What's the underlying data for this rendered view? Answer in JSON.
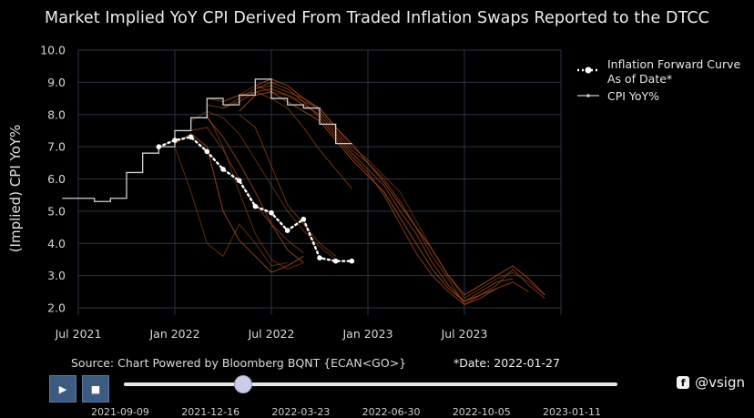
{
  "title": "Market Implied YoY CPI Derived From Traded Inflation Swaps Reported to the DTCC",
  "chart_data": {
    "type": "line",
    "title": "Market Implied YoY CPI Derived From Traded Inflation Swaps Reported to the DTCC",
    "ylabel": "(Implied) CPI YoY%",
    "xlabel": "",
    "ylim": [
      2.0,
      10.0
    ],
    "y_ticks": [
      "2.0",
      "3.0",
      "4.0",
      "5.0",
      "6.0",
      "7.0",
      "8.0",
      "9.0",
      "10.0"
    ],
    "x_ticks": [
      {
        "label": "Jul 2021",
        "x": "2021-07"
      },
      {
        "label": "Jan 2022",
        "x": "2022-01"
      },
      {
        "label": "Jul 2022",
        "x": "2022-07"
      },
      {
        "label": "Jan 2023",
        "x": "2023-01"
      },
      {
        "label": "Jul 2023",
        "x": "2023-07"
      }
    ],
    "grid": true,
    "legend_position": "top-right",
    "series": [
      {
        "name": "Inflation Forward Curve As of Date*",
        "style": "dotted",
        "color": "#ffffff",
        "x": [
          "2021-12",
          "2022-01",
          "2022-02",
          "2022-03",
          "2022-04",
          "2022-05",
          "2022-06",
          "2022-07",
          "2022-08",
          "2022-09",
          "2022-10",
          "2022-11",
          "2022-12"
        ],
        "y": [
          7.0,
          7.2,
          7.3,
          6.85,
          6.3,
          5.95,
          5.15,
          4.95,
          4.4,
          4.75,
          3.55,
          3.45,
          3.45
        ]
      },
      {
        "name": "CPI YoY%",
        "style": "step",
        "color": "#cfcfcf",
        "x": [
          "2021-06",
          "2021-07",
          "2021-08",
          "2021-09",
          "2021-10",
          "2021-11",
          "2021-12",
          "2022-01",
          "2022-02",
          "2022-03",
          "2022-04",
          "2022-05",
          "2022-06",
          "2022-07",
          "2022-08",
          "2022-09",
          "2022-10",
          "2022-11"
        ],
        "y": [
          5.4,
          5.4,
          5.3,
          5.4,
          6.2,
          6.8,
          7.0,
          7.5,
          7.9,
          8.5,
          8.3,
          8.6,
          9.1,
          8.5,
          8.3,
          8.2,
          7.7,
          7.1
        ]
      }
    ],
    "history_curves_color": "#a0471c",
    "history_curves": [
      {
        "x": [
          "2022-03",
          "2022-04",
          "2022-05",
          "2022-06",
          "2022-07",
          "2022-08",
          "2022-09",
          "2022-10",
          "2022-11",
          "2022-12",
          "2023-01",
          "2023-02",
          "2023-03",
          "2023-04",
          "2023-05",
          "2023-06",
          "2023-07",
          "2023-08",
          "2023-09",
          "2023-10",
          "2023-11",
          "2023-12"
        ],
        "y": [
          8.5,
          8.4,
          8.6,
          8.9,
          8.7,
          8.6,
          8.4,
          8.2,
          7.6,
          7.0,
          6.6,
          6.1,
          5.6,
          4.7,
          3.8,
          3.0,
          2.3,
          2.6,
          2.9,
          3.1,
          2.8,
          2.4
        ]
      },
      {
        "x": [
          "2022-03",
          "2022-04",
          "2022-05",
          "2022-06",
          "2022-07",
          "2022-08",
          "2022-09",
          "2022-10",
          "2022-11",
          "2022-12",
          "2023-01",
          "2023-02",
          "2023-03",
          "2023-04",
          "2023-05",
          "2023-06",
          "2023-07",
          "2023-08",
          "2023-09",
          "2023-10",
          "2023-11",
          "2023-12"
        ],
        "y": [
          8.3,
          8.2,
          8.5,
          8.8,
          8.9,
          8.7,
          8.5,
          8.1,
          7.5,
          6.9,
          6.5,
          6.0,
          5.3,
          4.5,
          3.6,
          2.9,
          2.1,
          2.4,
          2.7,
          3.2,
          2.7,
          2.3
        ]
      },
      {
        "x": [
          "2022-04",
          "2022-05",
          "2022-06",
          "2022-07",
          "2022-08",
          "2022-09",
          "2022-10",
          "2022-11",
          "2022-12",
          "2023-01",
          "2023-02",
          "2023-03",
          "2023-04",
          "2023-05",
          "2023-06",
          "2023-07",
          "2023-08",
          "2023-09",
          "2023-10"
        ],
        "y": [
          8.2,
          8.4,
          8.7,
          8.8,
          8.6,
          8.3,
          8.0,
          7.4,
          6.8,
          6.3,
          5.8,
          5.0,
          4.3,
          3.4,
          2.7,
          2.2,
          2.5,
          2.8,
          2.9
        ]
      },
      {
        "x": [
          "2022-05",
          "2022-06",
          "2022-07",
          "2022-08",
          "2022-09",
          "2022-10",
          "2022-11",
          "2022-12",
          "2023-01",
          "2023-02",
          "2023-03",
          "2023-04",
          "2023-05",
          "2023-06",
          "2023-07",
          "2023-08",
          "2023-09"
        ],
        "y": [
          8.1,
          8.6,
          8.7,
          8.4,
          8.1,
          7.8,
          7.2,
          6.6,
          6.1,
          5.6,
          4.8,
          4.0,
          3.2,
          2.6,
          2.2,
          2.4,
          2.6
        ]
      },
      {
        "x": [
          "2022-02",
          "2022-03",
          "2022-04",
          "2022-05",
          "2022-06",
          "2022-07",
          "2022-08",
          "2022-09",
          "2022-10",
          "2022-11"
        ],
        "y": [
          7.8,
          8.1,
          7.9,
          7.4,
          6.6,
          5.8,
          5.0,
          4.4,
          3.9,
          3.5
        ]
      },
      {
        "x": [
          "2022-02",
          "2022-03",
          "2022-04",
          "2022-05",
          "2022-06",
          "2022-07",
          "2022-08",
          "2022-09"
        ],
        "y": [
          7.5,
          7.6,
          6.9,
          6.0,
          5.2,
          4.6,
          4.1,
          3.7
        ]
      },
      {
        "x": [
          "2022-03",
          "2022-04",
          "2022-05",
          "2022-06",
          "2022-07",
          "2022-08",
          "2022-09"
        ],
        "y": [
          7.9,
          7.3,
          6.5,
          5.6,
          4.6,
          3.8,
          3.4
        ]
      },
      {
        "x": [
          "2022-01",
          "2022-02",
          "2022-03",
          "2022-04",
          "2022-05",
          "2022-06",
          "2022-07",
          "2022-08",
          "2022-09"
        ],
        "y": [
          7.1,
          7.4,
          7.0,
          5.0,
          4.1,
          3.6,
          3.1,
          3.3,
          3.6
        ]
      },
      {
        "x": [
          "2022-01",
          "2022-02",
          "2022-03",
          "2022-04",
          "2022-05",
          "2022-06",
          "2022-07",
          "2022-08"
        ],
        "y": [
          7.0,
          5.6,
          4.0,
          3.6,
          4.6,
          4.0,
          3.3,
          3.4
        ]
      },
      {
        "x": [
          "2022-04",
          "2022-05",
          "2022-06",
          "2022-07",
          "2022-08",
          "2022-09",
          "2022-10",
          "2022-11",
          "2022-12"
        ],
        "y": [
          8.4,
          8.6,
          8.7,
          8.5,
          8.2,
          7.6,
          6.9,
          6.3,
          5.7
        ]
      },
      {
        "x": [
          "2022-06",
          "2022-07",
          "2022-08",
          "2022-09",
          "2022-10",
          "2022-11",
          "2022-12",
          "2023-01",
          "2023-02",
          "2023-03",
          "2023-04",
          "2023-05",
          "2023-06",
          "2023-07",
          "2023-08",
          "2023-09",
          "2023-10",
          "2023-11"
        ],
        "y": [
          8.8,
          9.0,
          8.8,
          8.4,
          7.9,
          7.3,
          6.7,
          6.2,
          5.5,
          4.6,
          3.7,
          3.0,
          2.5,
          2.1,
          2.3,
          2.6,
          2.8,
          2.5
        ]
      },
      {
        "x": [
          "2022-06",
          "2022-07",
          "2022-08",
          "2022-09",
          "2022-10",
          "2022-11",
          "2022-12",
          "2023-01",
          "2023-02",
          "2023-03",
          "2023-04",
          "2023-05",
          "2023-06",
          "2023-07",
          "2023-08",
          "2023-09",
          "2023-10",
          "2023-11",
          "2023-12"
        ],
        "y": [
          8.9,
          9.1,
          8.9,
          8.5,
          8.2,
          7.6,
          7.1,
          6.5,
          5.9,
          5.2,
          4.5,
          3.8,
          3.0,
          2.4,
          2.7,
          3.0,
          3.3,
          2.9,
          2.4
        ]
      },
      {
        "x": [
          "2022-03",
          "2022-04",
          "2022-05",
          "2022-06",
          "2022-07",
          "2022-08",
          "2022-09"
        ],
        "y": [
          8.0,
          7.0,
          5.6,
          4.3,
          3.5,
          3.2,
          3.4
        ]
      },
      {
        "x": [
          "2022-05",
          "2022-06",
          "2022-07",
          "2022-08",
          "2022-09",
          "2022-10",
          "2022-11"
        ],
        "y": [
          8.0,
          7.6,
          6.4,
          5.2,
          4.6,
          4.0,
          3.6
        ]
      }
    ]
  },
  "legend": {
    "forward_line1": "Inflation Forward Curve",
    "forward_line2": "As of Date*",
    "cpi": "CPI YoY%"
  },
  "footer": {
    "source": "Source: Chart Powered by Bloomberg BQNT   {ECAN<GO>}",
    "as_of": "*Date: 2022-01-27"
  },
  "controls": {
    "play_icon": "play-icon",
    "stop_icon": "stop-icon",
    "slider_value": 0.24,
    "steps": [
      "2021-09-09",
      "2021-12-16",
      "2022-03-23",
      "2022-06-30",
      "2022-10-05",
      "2023-01-11"
    ]
  },
  "watermark": {
    "icon": "facebook-icon",
    "text": "@vsign"
  }
}
